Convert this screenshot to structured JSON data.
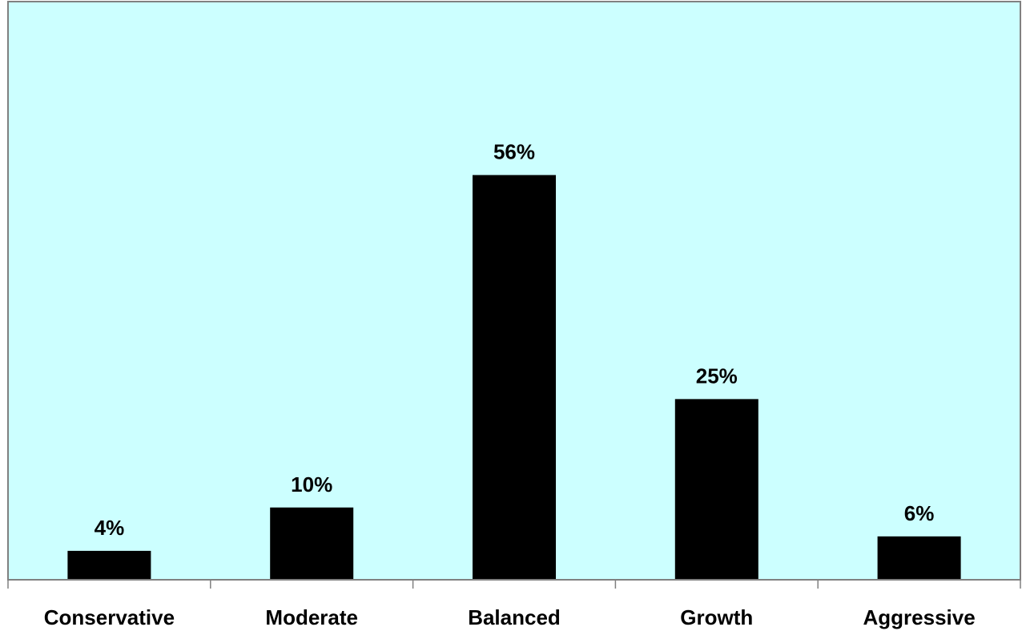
{
  "chart_data": {
    "type": "bar",
    "categories": [
      "Conservative",
      "Moderate",
      "Balanced",
      "Growth",
      "Aggressive"
    ],
    "values": [
      4,
      10,
      56,
      25,
      6
    ],
    "data_labels": [
      "4%",
      "10%",
      "56%",
      "25%",
      "6%"
    ],
    "title": "",
    "xlabel": "",
    "ylabel": "",
    "ylim": [
      0,
      80
    ],
    "grid": false,
    "legend": "none",
    "colors": {
      "plot_background": "#ccffff",
      "bar": "#000000",
      "axis": "#808080"
    }
  }
}
